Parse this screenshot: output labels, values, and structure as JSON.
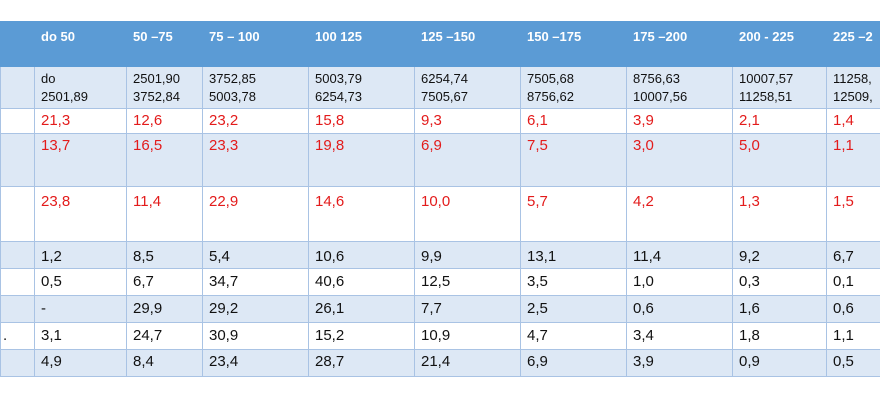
{
  "headers": [
    "",
    "do 50",
    "50  –75",
    "75 – 100",
    "100 125",
    "125 –150",
    "150 –175",
    "175 –200",
    "200 - 225",
    "225 –2"
  ],
  "ranges": [
    [
      "",
      ""
    ],
    [
      "do",
      "2501,89"
    ],
    [
      "2501,90",
      "3752,84"
    ],
    [
      "3752,85",
      "5003,78"
    ],
    [
      "5003,79",
      "6254,73"
    ],
    [
      "6254,74",
      "7505,67"
    ],
    [
      "7505,68",
      "8756,62"
    ],
    [
      "8756,63",
      "10007,56"
    ],
    [
      "10007,57",
      "11258,51"
    ],
    [
      "11258,",
      "12509,"
    ]
  ],
  "rows": [
    [
      "",
      "21,3",
      "12,6",
      "23,2",
      "15,8",
      "9,3",
      "6,1",
      "3,9",
      "2,1",
      "1,4"
    ],
    [
      "",
      "13,7",
      "16,5",
      "23,3",
      "19,8",
      "6,9",
      "7,5",
      "3,0",
      "5,0",
      "1,1"
    ],
    [
      "",
      "23,8",
      "11,4",
      "22,9",
      "14,6",
      "10,0",
      "5,7",
      "4,2",
      "1,3",
      "1,5"
    ],
    [
      "",
      "1,2",
      "8,5",
      "5,4",
      "10,6",
      "9,9",
      "13,1",
      "11,4",
      "9,2",
      "6,7"
    ],
    [
      "",
      "0,5",
      "6,7",
      "34,7",
      "40,6",
      "12,5",
      "3,5",
      "1,0",
      "0,3",
      "0,1"
    ],
    [
      "",
      "-",
      "29,9",
      "29,2",
      "26,1",
      "7,7",
      "2,5",
      "0,6",
      "1,6",
      "0,6"
    ],
    [
      ".",
      "3,1",
      " 24,7",
      "30,9",
      "15,2",
      "10,9",
      "4,7",
      "3,4",
      "1,8",
      "1,1"
    ],
    [
      "",
      "4,9",
      " 8,4",
      " 23,4",
      " 28,7",
      " 21,4",
      " 6,9",
      " 3,9",
      "0,9",
      "0,5"
    ]
  ]
}
